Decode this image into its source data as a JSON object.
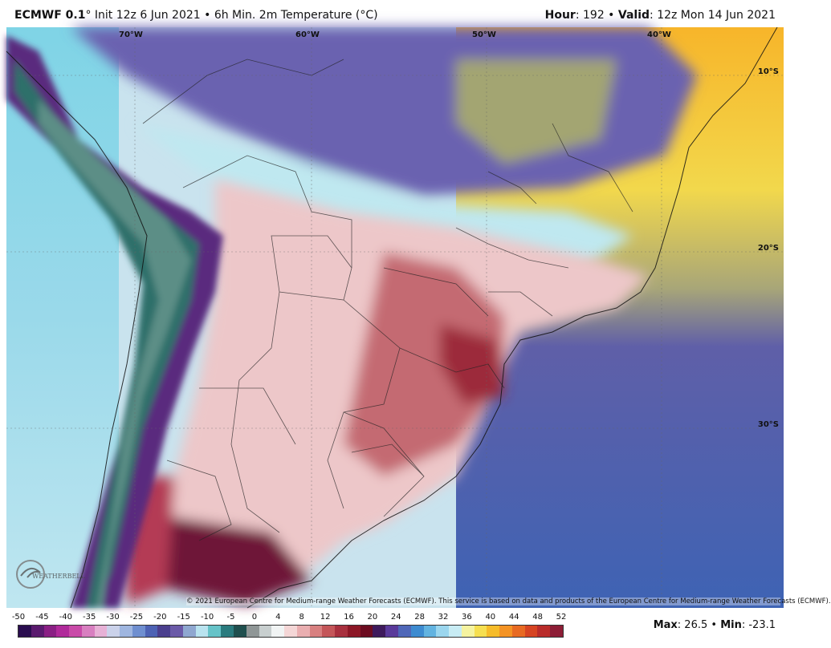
{
  "header": {
    "model": "ECMWF 0.1",
    "model_suffix": "° Init 12z 6 Jun 2021 • 6h Min. 2m Temperature (°C)",
    "hour_label": "Hour",
    "hour_value": ": 192 • ",
    "valid_label": "Valid",
    "valid_value": ": 12z Mon 14 Jun 2021"
  },
  "map": {
    "longitude_labels": [
      "70°W",
      "60°W",
      "50°W",
      "40°W"
    ],
    "latitude_labels": [
      "10°S",
      "20°S",
      "30°S"
    ],
    "copyright": "© 2021 European Centre for Medium-range Weather Forecasts (ECMWF). This service is based on data and products of the European Centre for Medium-range Weather Forecasts (ECMWF).",
    "logo_text": "WEATHERBELL"
  },
  "legend": {
    "ticks": [
      "-50",
      "-45",
      "-40",
      "-35",
      "-30",
      "-25",
      "-20",
      "-15",
      "-10",
      "-5",
      "0",
      "4",
      "8",
      "12",
      "16",
      "20",
      "24",
      "28",
      "32",
      "36",
      "40",
      "44",
      "48",
      "52"
    ],
    "colors": [
      "#2a0d4f",
      "#5a1a6e",
      "#8a1f84",
      "#b02a9a",
      "#c94aa8",
      "#d87fc0",
      "#e7b1d6",
      "#cbd2ea",
      "#9fb6e0",
      "#6f8fd0",
      "#4d62b4",
      "#4b3f8e",
      "#6b5aa8",
      "#8fa7d0",
      "#b9e3ef",
      "#66c3c8",
      "#2a7b7e",
      "#1f4f4e",
      "#8f9696",
      "#c8cfcf",
      "#f1f4f4",
      "#f4d6d6",
      "#e9aeb0",
      "#d88080",
      "#c45659",
      "#a8303e",
      "#8c1726",
      "#6c0c20",
      "#3e1a5c",
      "#5a3a9a",
      "#4f67b8",
      "#3d8bd0",
      "#62b3e0",
      "#9bd6ee",
      "#c8ecf4",
      "#f5f3a0",
      "#f6df50",
      "#f6bc2a",
      "#f49324",
      "#e86a22",
      "#d64422",
      "#b92c2a",
      "#8d1d36"
    ]
  },
  "stats": {
    "max_label": "Max",
    "max_value": ": 26.5 • ",
    "min_label": "Min",
    "min_value": ": -23.1"
  }
}
